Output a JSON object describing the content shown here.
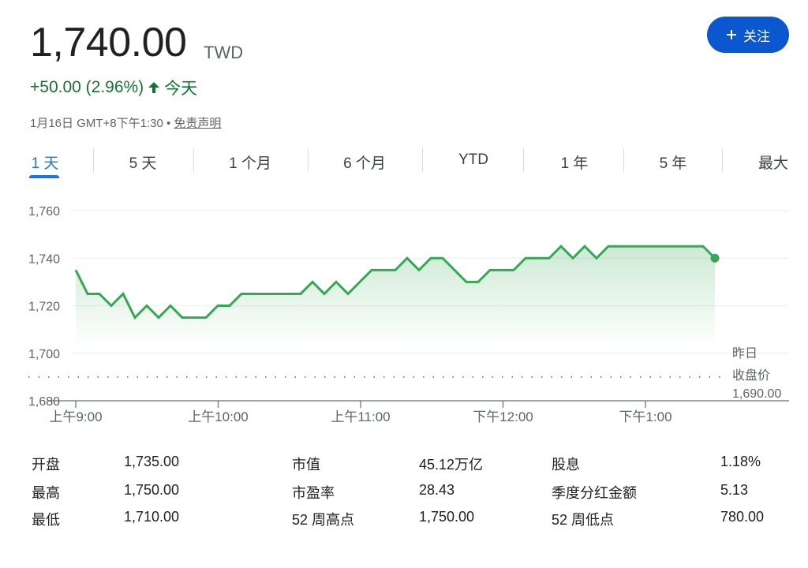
{
  "quote": {
    "price": "1,740.00",
    "currency": "TWD",
    "change": "+50.00 (2.96%)",
    "period": "今天",
    "timestamp": "1月16日 GMT+8下午1:30 •",
    "disclaimer": "免责声明",
    "up_color": "#137333"
  },
  "follow_button": {
    "label": "关注",
    "icon": "plus-icon",
    "color": "#0b57d0"
  },
  "tabs": [
    {
      "label": "1 天",
      "active": true
    },
    {
      "label": "5 天"
    },
    {
      "label": "1 个月"
    },
    {
      "label": "6 个月"
    },
    {
      "label": "YTD"
    },
    {
      "label": "1 年"
    },
    {
      "label": "5 年"
    },
    {
      "label": "最大"
    }
  ],
  "chart_data": {
    "type": "area",
    "x": [
      "9:00",
      "9:05",
      "9:10",
      "9:15",
      "9:20",
      "9:25",
      "9:30",
      "9:35",
      "9:40",
      "9:45",
      "9:50",
      "9:55",
      "10:00",
      "10:05",
      "10:10",
      "10:15",
      "10:20",
      "10:25",
      "10:30",
      "10:35",
      "10:40",
      "10:45",
      "10:50",
      "10:55",
      "11:00",
      "11:05",
      "11:10",
      "11:15",
      "11:20",
      "11:25",
      "11:30",
      "11:35",
      "11:40",
      "11:45",
      "11:50",
      "11:55",
      "12:00",
      "12:05",
      "12:10",
      "12:15",
      "12:20",
      "12:25",
      "12:30",
      "12:35",
      "12:40",
      "12:45",
      "12:50",
      "12:55",
      "13:00",
      "13:05",
      "13:10",
      "13:15",
      "13:20",
      "13:25",
      "13:30"
    ],
    "values": [
      1735,
      1725,
      1725,
      1720,
      1725,
      1715,
      1720,
      1715,
      1720,
      1715,
      1715,
      1715,
      1720,
      1720,
      1725,
      1725,
      1725,
      1725,
      1725,
      1725,
      1730,
      1725,
      1730,
      1725,
      1730,
      1735,
      1735,
      1735,
      1740,
      1735,
      1740,
      1740,
      1735,
      1730,
      1730,
      1735,
      1735,
      1735,
      1740,
      1740,
      1740,
      1745,
      1740,
      1745,
      1740,
      1745,
      1745,
      1745,
      1745,
      1745,
      1745,
      1745,
      1745,
      1745,
      1740
    ],
    "ylim": [
      1680,
      1760
    ],
    "yticks": [
      "1,760",
      "1,740",
      "1,720",
      "1,700",
      "1,680"
    ],
    "xticks": [
      "上午9:00",
      "上午10:00",
      "上午11:00",
      "下午12:00",
      "下午1:00"
    ],
    "previous_close": {
      "value": 1690,
      "label_line1": "昨日",
      "label_line2": "收盘价",
      "label_value": "1,690.00"
    },
    "grid": true,
    "line_color": "#34a853"
  },
  "stats": [
    [
      {
        "label": "开盘",
        "value": "1,735.00"
      },
      {
        "label": "市值",
        "value": "45.12万亿"
      },
      {
        "label": "股息",
        "value": "1.18%"
      }
    ],
    [
      {
        "label": "最高",
        "value": "1,750.00"
      },
      {
        "label": "市盈率",
        "value": "28.43"
      },
      {
        "label": "季度分红金额",
        "value": "5.13"
      }
    ],
    [
      {
        "label": "最低",
        "value": "1,710.00"
      },
      {
        "label": "52 周高点",
        "value": "1,750.00"
      },
      {
        "label": "52 周低点",
        "value": "780.00"
      }
    ]
  ]
}
